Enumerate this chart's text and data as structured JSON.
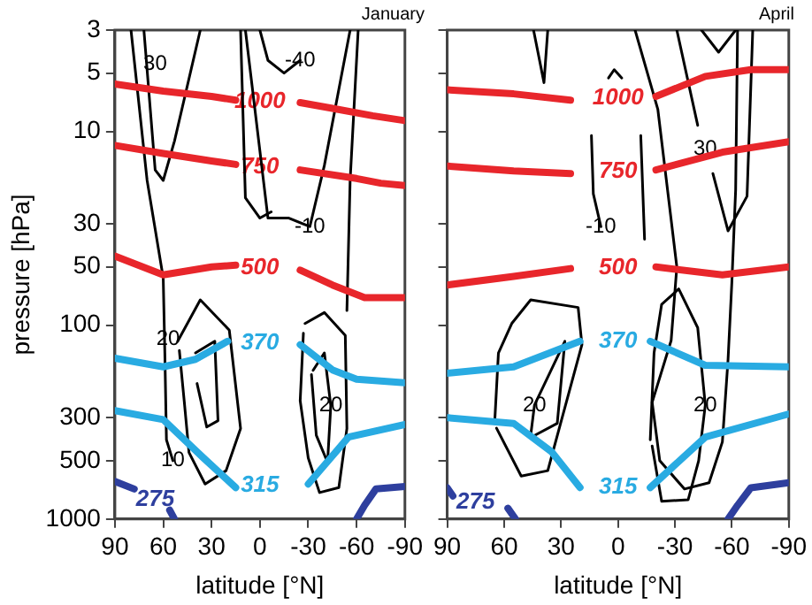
{
  "chart_data": [
    {
      "type": "line",
      "title": "January",
      "xlabel": "latitude [°N]",
      "ylabel": "pressure [hPa]",
      "xlim": [
        90,
        -90
      ],
      "xticks": [
        90,
        60,
        30,
        0,
        -30,
        -60,
        -90
      ],
      "ylim": [
        1000,
        3
      ],
      "yticks": [
        3,
        5,
        10,
        30,
        50,
        100,
        300,
        500,
        1000
      ],
      "log": "y",
      "grid": false,
      "legend": false,
      "series": [
        {
          "name": "1000",
          "color": "#e8262b",
          "x": [
            90,
            60,
            30,
            15,
            0,
            -25,
            -45,
            -70,
            -90
          ],
          "values": [
            5.7,
            6.2,
            6.6,
            6.9,
            null,
            7.1,
            7.6,
            8.3,
            8.8
          ]
        },
        {
          "name": "750",
          "color": "#e8262b",
          "x": [
            90,
            60,
            30,
            15,
            0,
            -25,
            -60,
            -75,
            -90
          ],
          "values": [
            11.8,
            13,
            14.2,
            14.8,
            null,
            15.8,
            17.5,
            18.5,
            19
          ]
        },
        {
          "name": "500",
          "color": "#e8262b",
          "x": [
            90,
            60,
            30,
            15,
            0,
            -25,
            -45,
            -65,
            -90
          ],
          "values": [
            44,
            55,
            50,
            49,
            null,
            52,
            62,
            72,
            72
          ]
        },
        {
          "name": "370",
          "color": "#29abe2",
          "x": [
            90,
            60,
            40,
            20,
            0,
            -25,
            -45,
            -60,
            -90
          ],
          "values": [
            148,
            164,
            150,
            121,
            null,
            126,
            170,
            190,
            198
          ]
        },
        {
          "name": "315",
          "color": "#29abe2",
          "x": [
            90,
            60,
            35,
            15,
            0,
            -30,
            -55,
            -90
          ],
          "values": [
            276,
            307,
            484,
            688,
            null,
            660,
            378,
            325
          ]
        },
        {
          "name": "275",
          "color": "#2e3f9e",
          "x": [
            90,
            78,
            65,
            56,
            53,
            0,
            -60,
            -65,
            -72,
            -90
          ],
          "values": [
            640,
            700,
            null,
            900,
            1000,
            null,
            1000,
            850,
            700,
            680
          ]
        },
        {
          "color": "#000000",
          "x": [
            72,
            65,
            60,
            53,
            37
          ],
          "values": [
            3,
            15.8,
            17.9,
            11.2,
            3
          ]
        },
        {
          "color": "#000000",
          "x": [
            80,
            70,
            60,
            59,
            58,
            54
          ],
          "values": [
            3,
            17.9,
            57,
            139,
            390,
            500
          ]
        },
        {
          "color": "#000000",
          "x": [
            0,
            -5,
            -15,
            -25
          ],
          "values": [
            3,
            4.3,
            5,
            4.3
          ]
        },
        {
          "color": "#000000",
          "x": [
            9,
            -5,
            -18,
            -31,
            -40,
            -56
          ],
          "values": [
            3,
            28,
            28,
            31,
            15,
            3
          ]
        },
        {
          "color": "#000000",
          "x": [
            -61,
            -56,
            -54
          ],
          "values": [
            3,
            17.9,
            84
          ]
        },
        {
          "color": "#000000",
          "x": [
            12,
            9,
            0,
            -7
          ],
          "values": [
            3,
            22,
            28,
            26
          ]
        },
        {
          "color": "#000000",
          "x": [
            51,
            37,
            19,
            12,
            21,
            34,
            44,
            47,
            50
          ],
          "values": [
            121,
            74,
            106,
            341,
            563,
            660,
            454,
            245,
            135
          ]
        },
        {
          "color": "#000000",
          "x": [
            40,
            28,
            26,
            33,
            39
          ],
          "values": [
            139,
            121,
            311,
            335,
            200
          ]
        },
        {
          "color": "#000000",
          "x": [
            -28,
            -40,
            -53,
            -54,
            -49,
            -37,
            -30,
            -25,
            -27
          ],
          "values": [
            98,
            86,
            113,
            341,
            688,
            730,
            484,
            245,
            110
          ]
        },
        {
          "color": "#000000",
          "x": [
            -33,
            -40,
            -44,
            -42,
            -35,
            -32
          ],
          "values": [
            171,
            139,
            260,
            510,
            370,
            180
          ]
        }
      ],
      "annotations": [
        {
          "text": "30",
          "x": 65,
          "y": 4.5
        },
        {
          "text": "-40",
          "x": -25,
          "y": 4.3
        },
        {
          "text": "-10",
          "x": -31,
          "y": 31
        },
        {
          "text": "20",
          "x": 57,
          "y": 118
        },
        {
          "text": "20",
          "x": -44,
          "y": 260
        },
        {
          "text": "10",
          "x": 54,
          "y": 500
        }
      ]
    },
    {
      "type": "line",
      "title": "April",
      "xlabel": "latitude [°N]",
      "xlim": [
        90,
        -90
      ],
      "xticks": [
        90,
        60,
        30,
        0,
        -30,
        -60,
        -90
      ],
      "ylim": [
        1000,
        3
      ],
      "yticks": [
        3,
        5,
        10,
        30,
        50,
        100,
        300,
        500,
        1000
      ],
      "log": "y",
      "grid": false,
      "legend": false,
      "tick_labels": "x",
      "series": [
        {
          "name": "1000",
          "color": "#e8262b",
          "x": [
            90,
            55,
            25,
            0,
            -20,
            -46,
            -70,
            -90
          ],
          "values": [
            6.1,
            6.4,
            6.9,
            null,
            6.6,
            5.2,
            4.8,
            4.8
          ]
        },
        {
          "name": "750",
          "color": "#e8262b",
          "x": [
            90,
            55,
            25,
            0,
            -20,
            -55,
            -90
          ],
          "values": [
            15.1,
            16,
            16.5,
            null,
            15.8,
            12.8,
            11.3
          ]
        },
        {
          "name": "500",
          "color": "#e8262b",
          "x": [
            90,
            55,
            25,
            0,
            -20,
            -55,
            -90
          ],
          "values": [
            62,
            56,
            51,
            null,
            50,
            55,
            50
          ]
        },
        {
          "name": "370",
          "color": "#29abe2",
          "x": [
            90,
            55,
            20,
            0,
            -17,
            -46,
            -90
          ],
          "values": [
            177,
            164,
            121,
            null,
            121,
            161,
            164
          ]
        },
        {
          "name": "315",
          "color": "#29abe2",
          "x": [
            90,
            55,
            35,
            20,
            0,
            -17,
            -46,
            -90
          ],
          "values": [
            300,
            321,
            450,
            688,
            null,
            688,
            378,
            287
          ]
        },
        {
          "name": "275",
          "color": "#2e3f9e",
          "x": [
            90,
            87,
            75,
            58,
            54,
            0,
            -58,
            -63,
            -70,
            -90
          ],
          "values": [
            690,
            760,
            null,
            880,
            1000,
            null,
            1000,
            850,
            690,
            650
          ]
        },
        {
          "color": "#000000",
          "x": [
            44.5,
            39,
            37
          ],
          "values": [
            3,
            5.6,
            3
          ]
        },
        {
          "color": "#000000",
          "x": [
            -9,
            -21,
            -31,
            -28,
            -18,
            -22,
            -35,
            -48,
            -55,
            -58,
            -60,
            -62,
            -63
          ],
          "values": [
            3,
            7.7,
            50,
            120,
            250,
            500,
            700,
            650,
            400,
            150,
            60,
            20,
            3
          ]
        },
        {
          "color": "#000000",
          "x": [
            -31,
            -42,
            -46,
            -50,
            -58,
            -68,
            -71
          ],
          "values": [
            3,
            9.3,
            null,
            16.5,
            32.6,
            21.6,
            3
          ]
        },
        {
          "color": "#000000",
          "x": [
            -44,
            -53,
            -62
          ],
          "values": [
            3,
            3.9,
            3
          ]
        },
        {
          "color": "#000000",
          "x": [
            14,
            13,
            9
          ],
          "values": [
            10.5,
            21,
            31
          ]
        },
        {
          "color": "#000000",
          "x": [
            -12,
            -14
          ],
          "values": [
            10.5,
            36
          ]
        },
        {
          "color": "#000000",
          "x": [
            5,
            2,
            -2
          ],
          "values": [
            5.3,
            4.8,
            5.3
          ]
        },
        {
          "color": "#000000",
          "x": [
            65,
            63,
            56,
            46,
            21,
            19,
            37,
            51,
            64
          ],
          "values": [
            321,
            139,
            98,
            74,
            81,
            126,
            563,
            600,
            340
          ]
        },
        {
          "color": "#000000",
          "x": [
            46,
            44,
            28,
            32,
            45
          ],
          "values": [
            370,
            258,
            121,
            321,
            375
          ]
        },
        {
          "color": "#000000",
          "x": [
            -17,
            -19,
            -23,
            -32,
            -42,
            -46,
            -42.5,
            -37,
            -23,
            -18
          ],
          "values": [
            390,
            139,
            78,
            65,
            103,
            258,
            500,
            795,
            810,
            420
          ]
        }
      ],
      "annotations": [
        {
          "text": "30",
          "x": -46,
          "y": 12.3
        },
        {
          "text": "-10",
          "x": 9,
          "y": 31
        },
        {
          "text": "20",
          "x": 44,
          "y": 258
        },
        {
          "text": "20",
          "x": -46,
          "y": 258
        }
      ]
    }
  ]
}
